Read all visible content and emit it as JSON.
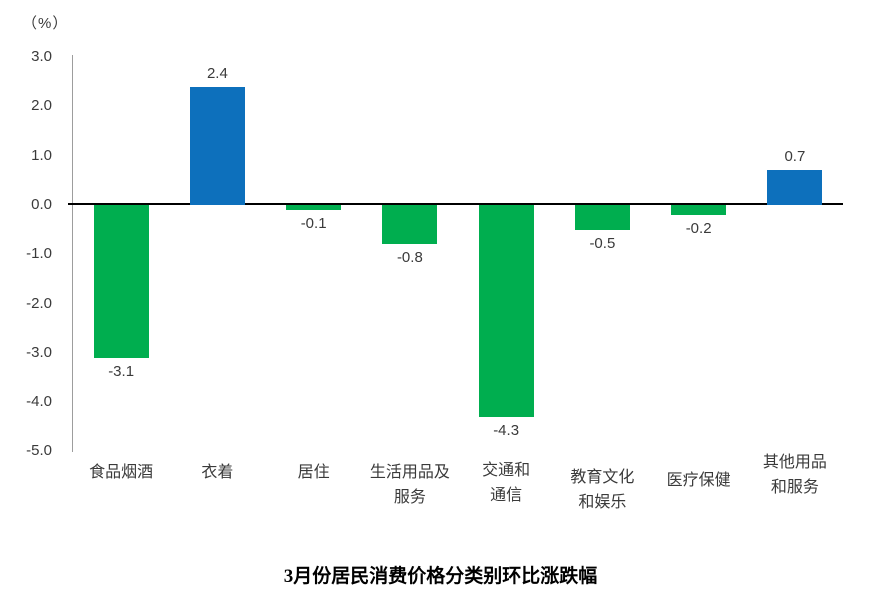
{
  "unit_label": "（%）",
  "title": "3月份居民消费价格分类别环比涨跌幅",
  "chart_data": {
    "type": "bar",
    "title": "3月份居民消费价格分类别环比涨跌幅",
    "ylabel_unit": "（%）",
    "categories": [
      "食品烟酒",
      "衣着",
      "居住",
      "生活用品及服务",
      "交通和通信",
      "教育文化和娱乐",
      "医疗保健",
      "其他用品和服务"
    ],
    "category_lines": [
      [
        "食品烟酒"
      ],
      [
        "衣着"
      ],
      [
        "居住"
      ],
      [
        "生活用品及",
        "服务"
      ],
      [
        "交通和",
        "通信"
      ],
      [
        "教育文化",
        "和娱乐"
      ],
      [
        "医疗保健"
      ],
      [
        "其他用品",
        "和服务"
      ]
    ],
    "values": [
      -3.1,
      2.4,
      -0.1,
      -0.8,
      -4.3,
      -0.5,
      -0.2,
      0.7
    ],
    "data_labels": [
      "-3.1",
      "2.4",
      "-0.1",
      "-0.8",
      "-4.3",
      "-0.5",
      "-0.2",
      "0.7"
    ],
    "y_ticks": [
      "3.0",
      "2.0",
      "1.0",
      "0.0",
      "-1.0",
      "-2.0",
      "-3.0",
      "-4.0",
      "-5.0"
    ],
    "ylim": [
      -5.0,
      3.0
    ],
    "grid": false,
    "legend": false,
    "colors": {
      "positive": "#0d70bc",
      "negative": "#00ae4f",
      "axis_line": "#9d9d9d",
      "zero_line": "#000000",
      "text": "#3a3a3a"
    }
  }
}
